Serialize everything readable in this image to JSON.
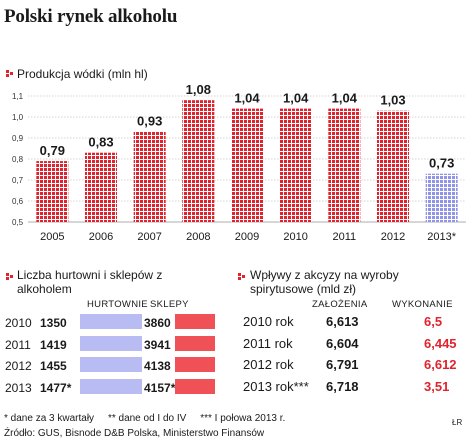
{
  "title": "Polski rynek alkoholu",
  "chart_data": [
    {
      "type": "bar",
      "title": "Produkcja wódki (mln hl)",
      "categories": [
        "2005",
        "2006",
        "2007",
        "2008",
        "2009",
        "2010",
        "2011",
        "2012",
        "2013*"
      ],
      "values": [
        0.79,
        0.83,
        0.93,
        1.08,
        1.04,
        1.04,
        1.04,
        1.03,
        0.73
      ],
      "value_labels": [
        "0,79",
        "0,83",
        "0,93",
        "1,08",
        "1,04",
        "1,04",
        "1,04",
        "1,03",
        "0,73"
      ],
      "y_ticks": [
        "0,5",
        "0,6",
        "0,7",
        "0,8",
        "0,9",
        "1,0",
        "1,1"
      ],
      "ylim": [
        0.5,
        1.1
      ],
      "colors": {
        "actual": "#e0232c",
        "partial": "#8f94e8"
      }
    },
    {
      "type": "table",
      "title": "Liczba hurtowni i sklepów z alkoholem",
      "headers": [
        "HURTOWNIE",
        "SKLEPY"
      ],
      "rows": [
        {
          "year": "2010",
          "hurtownie": "1350",
          "sklepy": "3860"
        },
        {
          "year": "2011",
          "hurtownie": "1419",
          "sklepy": "3941"
        },
        {
          "year": "2012",
          "hurtownie": "1455",
          "sklepy": "4138"
        },
        {
          "year": "2013",
          "hurtownie": "1477*",
          "sklepy": "4157**"
        }
      ],
      "colors": {
        "hurtownie": "#b9bcf3",
        "sklepy": "#ef5157"
      }
    },
    {
      "type": "table",
      "title": "Wpływy z akcyzy na wyroby spirytusowe (mld zł)",
      "headers": [
        "ZAŁOŻENIA",
        "WYKONANIE"
      ],
      "rows": [
        {
          "year": "2010 rok",
          "zalozenia": "6,613",
          "wykonanie": "6,5"
        },
        {
          "year": "2011 rok",
          "zalozenia": "6,604",
          "wykonanie": "6,445"
        },
        {
          "year": "2012 rok",
          "zalozenia": "6,791",
          "wykonanie": "6,612"
        },
        {
          "year": "2013 rok***",
          "zalozenia": "6,718",
          "wykonanie": "3,51"
        }
      ]
    }
  ],
  "footnotes": {
    "line1": "* dane za 3 kwartały     ** dane od I do IV     *** I połowa 2013 r.",
    "line2": "Źródło: GUS, Bisnode D&B Polska, Ministerstwo Finansów"
  },
  "credit": "ŁR"
}
